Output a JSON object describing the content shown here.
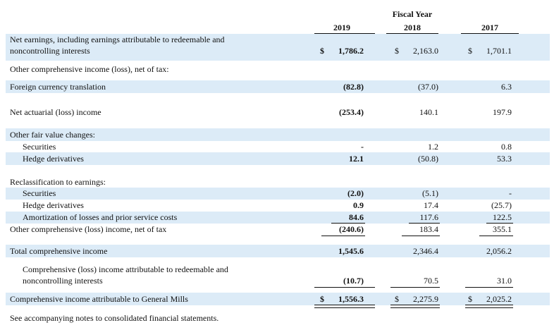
{
  "header": {
    "fiscal_year": "Fiscal Year",
    "years": [
      "2019",
      "2018",
      "2017"
    ]
  },
  "rows": {
    "net_earnings_l1": "Net earnings, including earnings attributable to redeemable and",
    "net_earnings_l2": "noncontrolling interests",
    "oci_heading": "Other comprehensive income (loss), net of tax:",
    "foreign_currency": "Foreign currency translation",
    "net_actuarial": "Net actuarial (loss) income",
    "fair_value_heading": "Other fair value changes:",
    "securities": "Securities",
    "hedge_derivatives": "Hedge derivatives",
    "reclass_heading": "Reclassification to earnings:",
    "reclass_securities": "Securities",
    "reclass_hedge": "Hedge derivatives",
    "amortization": "Amortization of losses and prior service costs",
    "oci_total": "Other comprehensive (loss) income, net of tax",
    "total_ci": "Total comprehensive income",
    "ci_redeemable_l1": "Comprehensive (loss) income attributable to redeemable and",
    "ci_redeemable_l2": "noncontrolling interests",
    "ci_general_mills": "Comprehensive income attributable to General Mills",
    "footnote": "See accompanying notes to consolidated financial statements."
  },
  "currency_symbol": "$",
  "values": {
    "net_earnings": [
      "1,786.2",
      "2,163.0",
      "1,701.1"
    ],
    "foreign_currency": [
      "(82.8)",
      "(37.0)",
      "6.3"
    ],
    "net_actuarial": [
      "(253.4)",
      "140.1",
      "197.9"
    ],
    "securities": [
      "-",
      "1.2",
      "0.8"
    ],
    "hedge_derivatives": [
      "12.1",
      "(50.8)",
      "53.3"
    ],
    "reclass_securities": [
      "(2.0)",
      "(5.1)",
      "-"
    ],
    "reclass_hedge": [
      "0.9",
      "17.4",
      "(25.7)"
    ],
    "amortization": [
      "84.6",
      "117.6",
      "122.5"
    ],
    "oci_total": [
      "(240.6)",
      "183.4",
      "355.1"
    ],
    "total_ci": [
      "1,545.6",
      "2,346.4",
      "2,056.2"
    ],
    "ci_redeemable": [
      "(10.7)",
      "70.5",
      "31.0"
    ],
    "ci_general_mills": [
      "1,556.3",
      "2,275.9",
      "2,025.2"
    ]
  },
  "colors": {
    "band": "#dcebf7",
    "text": "#111111"
  }
}
